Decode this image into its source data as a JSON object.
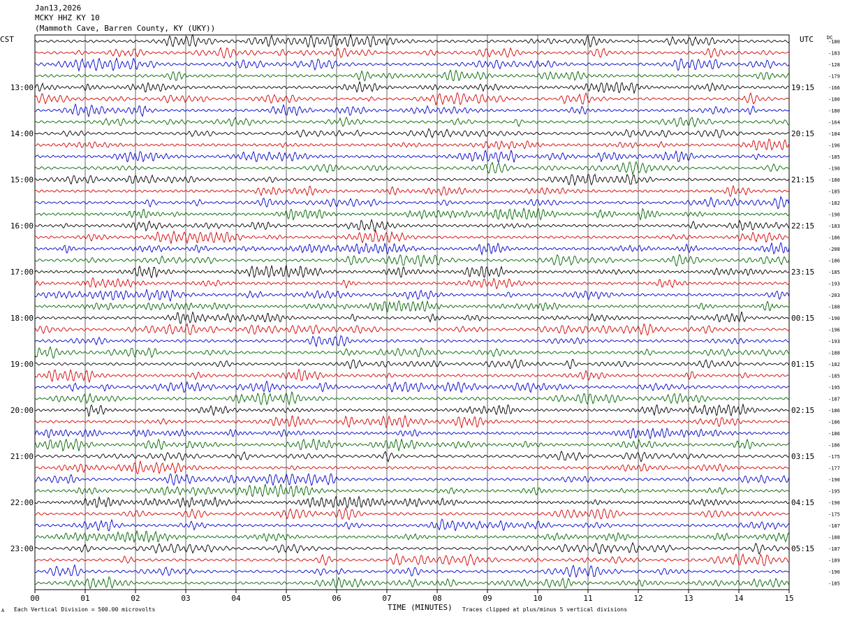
{
  "header": {
    "date": "Jan13,2026",
    "station": "MCKY HHZ KY 10",
    "location": "(Mammoth Cave, Barren County, KY (UKY))"
  },
  "labels": {
    "left_tz": "CST",
    "right_tz": "UTC",
    "dc": "DC",
    "xlabel": "TIME (MINUTES)",
    "foot_left": "Each Vertical Division =  500.00 microvolts",
    "foot_right": "Traces clipped at plus/minus 5 vertical divisions",
    "foot_mark": "A"
  },
  "chart_data": {
    "type": "line",
    "title": "MCKY HHZ KY 10",
    "xlabel": "TIME (MINUTES)",
    "xlim": [
      0,
      15
    ],
    "x_ticks": [
      "00",
      "01",
      "02",
      "03",
      "04",
      "05",
      "06",
      "07",
      "08",
      "09",
      "10",
      "11",
      "12",
      "13",
      "14",
      "15"
    ],
    "trace_colors": [
      "#000000",
      "#d40000",
      "#0000cc",
      "#006400"
    ],
    "traces_per_hour": 4,
    "minutes_per_trace": 15,
    "left_hour_labels": [
      "13:00",
      "14:00",
      "15:00",
      "16:00",
      "17:00",
      "18:00",
      "19:00",
      "20:00",
      "21:00",
      "22:00",
      "23:00"
    ],
    "right_hour_labels": [
      "19:15",
      "20:15",
      "21:15",
      "22:15",
      "23:15",
      "00:15",
      "01:15",
      "02:15",
      "03:15",
      "04:15",
      "05:15"
    ],
    "dc_offsets": [
      -180,
      -183,
      -128,
      -179,
      -166,
      -180,
      -180,
      -164,
      -184,
      -196,
      -185,
      -190,
      -180,
      -185,
      -182,
      -190,
      -183,
      -186,
      -208,
      -186,
      -185,
      -193,
      -203,
      -188,
      -190,
      -196,
      -193,
      -188,
      -182,
      -185,
      -195,
      -187,
      -186,
      -186,
      -186,
      -186,
      -175,
      -177,
      -190,
      -195,
      -190,
      -175,
      -187,
      -188,
      -187,
      -189,
      -190,
      -185
    ]
  }
}
